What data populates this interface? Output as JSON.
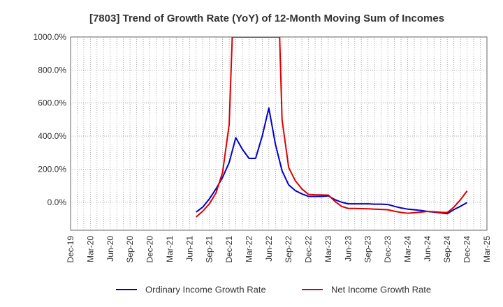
{
  "chart_data": {
    "type": "line",
    "title": "[7803]  Trend of Growth Rate (YoY) of 12-Month Moving Sum of Incomes",
    "xlabel": "",
    "ylabel": "",
    "ylim": [
      -170,
      1000
    ],
    "y_ticks": [
      "0.0%",
      "200.0%",
      "400.0%",
      "600.0%",
      "800.0%",
      "1000.0%"
    ],
    "y_tick_values": [
      0,
      200,
      400,
      600,
      800,
      1000
    ],
    "x_range": [
      "2019-12",
      "2025-03"
    ],
    "x_ticks": [
      "Dec-19",
      "Mar-20",
      "Jun-20",
      "Sep-20",
      "Dec-20",
      "Mar-21",
      "Jun-21",
      "Sep-21",
      "Dec-21",
      "Mar-22",
      "Jun-22",
      "Sep-22",
      "Dec-22",
      "Mar-23",
      "Jun-23",
      "Sep-23",
      "Dec-23",
      "Mar-24",
      "Jun-24",
      "Sep-24",
      "Dec-24",
      "Mar-25"
    ],
    "grid": true,
    "legend_position": "bottom",
    "series": [
      {
        "name": "Ordinary Income Growth Rate",
        "color": "#0000cc",
        "points": [
          [
            "2021-07",
            -60
          ],
          [
            "2021-08",
            -30
          ],
          [
            "2021-09",
            20
          ],
          [
            "2021-10",
            80
          ],
          [
            "2021-11",
            150
          ],
          [
            "2021-12",
            240
          ],
          [
            "2022-01",
            390
          ],
          [
            "2022-02",
            320
          ],
          [
            "2022-03",
            265
          ],
          [
            "2022-04",
            265
          ],
          [
            "2022-05",
            400
          ],
          [
            "2022-06",
            570
          ],
          [
            "2022-07",
            350
          ],
          [
            "2022-08",
            190
          ],
          [
            "2022-09",
            105
          ],
          [
            "2022-10",
            70
          ],
          [
            "2022-11",
            50
          ],
          [
            "2022-12",
            35
          ],
          [
            "2023-01",
            35
          ],
          [
            "2023-02",
            35
          ],
          [
            "2023-03",
            38
          ],
          [
            "2023-04",
            15
          ],
          [
            "2023-05",
            0
          ],
          [
            "2023-06",
            -10
          ],
          [
            "2023-07",
            -10
          ],
          [
            "2023-08",
            -10
          ],
          [
            "2023-09",
            -10
          ],
          [
            "2023-10",
            -12
          ],
          [
            "2023-11",
            -12
          ],
          [
            "2023-12",
            -14
          ],
          [
            "2024-01",
            -25
          ],
          [
            "2024-02",
            -35
          ],
          [
            "2024-03",
            -42
          ],
          [
            "2024-04",
            -46
          ],
          [
            "2024-05",
            -50
          ],
          [
            "2024-06",
            -56
          ],
          [
            "2024-07",
            -60
          ],
          [
            "2024-08",
            -65
          ],
          [
            "2024-09",
            -70
          ],
          [
            "2024-10",
            -45
          ],
          [
            "2024-11",
            -25
          ],
          [
            "2024-12",
            -2
          ]
        ]
      },
      {
        "name": "Net Income Growth Rate",
        "color": "#dd0000",
        "points": [
          [
            "2021-07",
            -90
          ],
          [
            "2021-08",
            -55
          ],
          [
            "2021-09",
            -10
          ],
          [
            "2021-10",
            55
          ],
          [
            "2021-11",
            180
          ],
          [
            "2021-12",
            470
          ],
          [
            "2021-12-15",
            1000
          ],
          [
            "2022-07-20",
            1000
          ],
          [
            "2022-08",
            500
          ],
          [
            "2022-09",
            210
          ],
          [
            "2022-10",
            130
          ],
          [
            "2022-11",
            80
          ],
          [
            "2022-12",
            47
          ],
          [
            "2023-01",
            45
          ],
          [
            "2023-02",
            44
          ],
          [
            "2023-03",
            43
          ],
          [
            "2023-04",
            5
          ],
          [
            "2023-05",
            -25
          ],
          [
            "2023-06",
            -38
          ],
          [
            "2023-07",
            -38
          ],
          [
            "2023-08",
            -39
          ],
          [
            "2023-09",
            -40
          ],
          [
            "2023-10",
            -42
          ],
          [
            "2023-11",
            -44
          ],
          [
            "2023-12",
            -46
          ],
          [
            "2024-01",
            -55
          ],
          [
            "2024-02",
            -62
          ],
          [
            "2024-03",
            -67
          ],
          [
            "2024-04",
            -64
          ],
          [
            "2024-05",
            -60
          ],
          [
            "2024-06",
            -56
          ],
          [
            "2024-07",
            -58
          ],
          [
            "2024-08",
            -61
          ],
          [
            "2024-09",
            -63
          ],
          [
            "2024-10",
            -30
          ],
          [
            "2024-11",
            15
          ],
          [
            "2024-12",
            68
          ]
        ]
      }
    ]
  }
}
